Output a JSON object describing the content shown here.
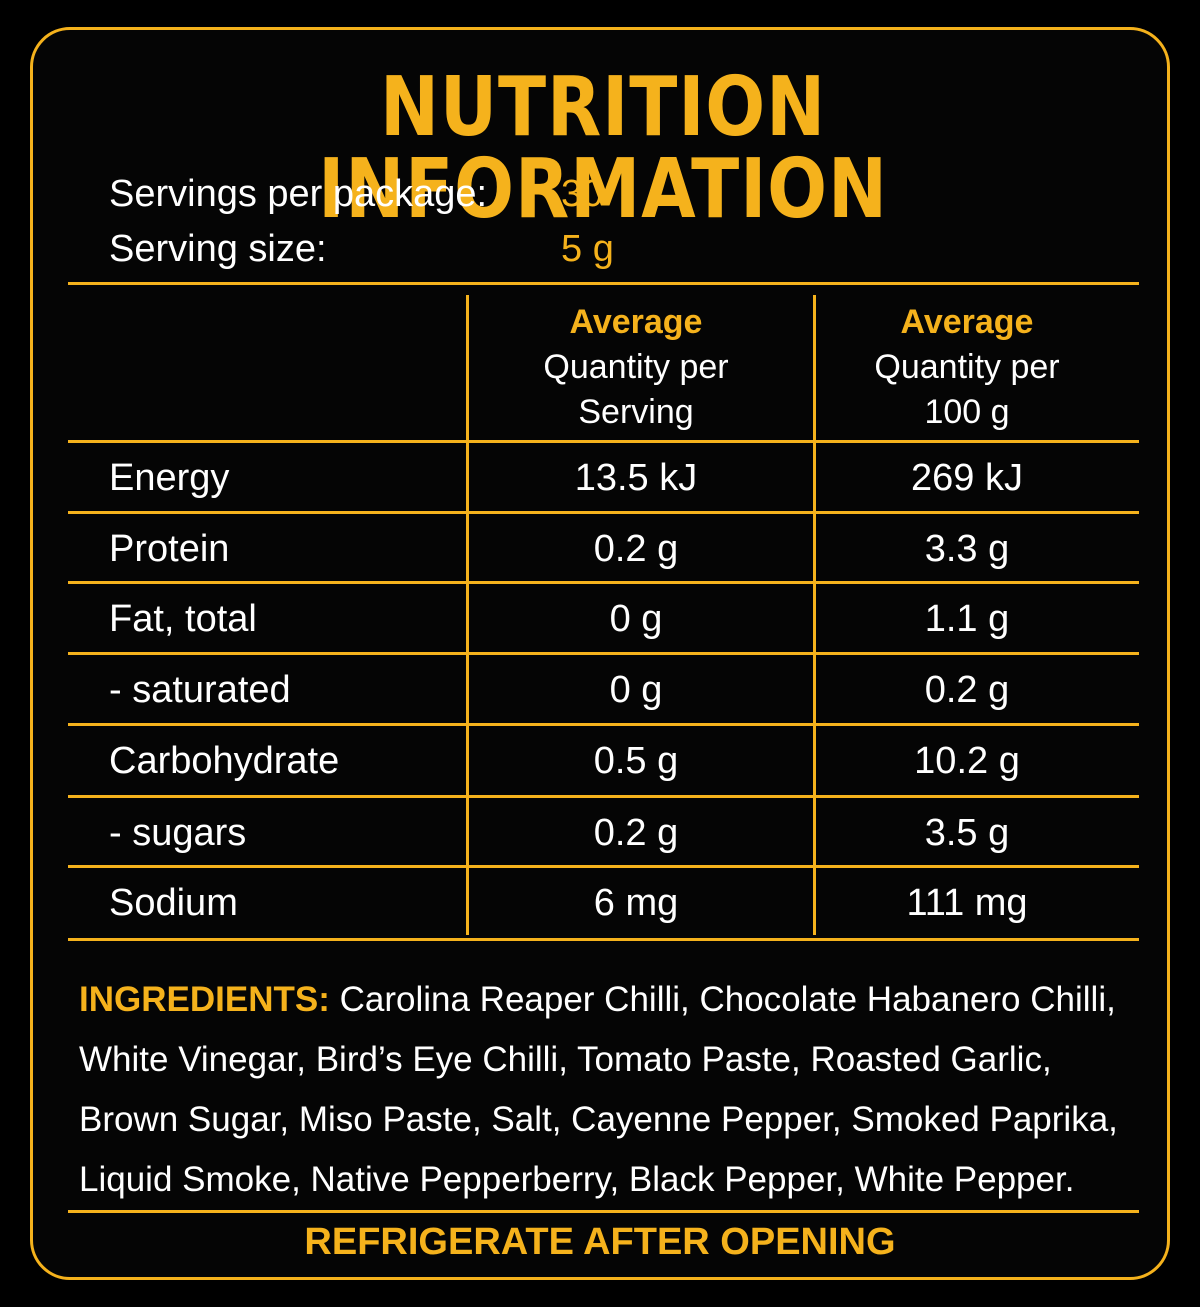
{
  "title": "NUTRITION INFORMATION",
  "servings": {
    "per_package_label": "Servings per package:",
    "per_package_value": "30",
    "size_label": "Serving size:",
    "size_value": "5 g"
  },
  "table": {
    "headers": [
      {
        "highlight": "Average",
        "line1": "Quantity per",
        "line2": "Serving"
      },
      {
        "highlight": "Average",
        "line1": "Quantity per",
        "line2": "100 g"
      }
    ],
    "rows": [
      {
        "label": "Energy",
        "per_serving": "13.5 kJ",
        "per_100g": "269 kJ"
      },
      {
        "label": "Protein",
        "per_serving": "0.2 g",
        "per_100g": "3.3 g"
      },
      {
        "label": "Fat, total",
        "per_serving": "0 g",
        "per_100g": "1.1 g"
      },
      {
        "label": "- saturated",
        "per_serving": "0 g",
        "per_100g": "0.2 g"
      },
      {
        "label": "Carbohydrate",
        "per_serving": "0.5 g",
        "per_100g": "10.2 g"
      },
      {
        "label": "- sugars",
        "per_serving": "0.2 g",
        "per_100g": "3.5 g"
      },
      {
        "label": "Sodium",
        "per_serving": "6 mg",
        "per_100g": "111 mg"
      }
    ]
  },
  "ingredients": {
    "title": "INGREDIENTS:",
    "text": "Carolina Reaper Chilli, Chocolate Habanero Chilli, White Vinegar, Bird’s Eye Chilli, Tomato Paste, Roasted Garlic, Brown Sugar, Miso Paste, Salt, Cayenne Pepper, Smoked Paprika, Liquid Smoke, Native Pepperberry, Black Pepper, White Pepper."
  },
  "footer": "REFRIGERATE AFTER OPENING",
  "colors": {
    "accent": "#f5b21c",
    "background": "#000000",
    "text": "#ffffff"
  }
}
